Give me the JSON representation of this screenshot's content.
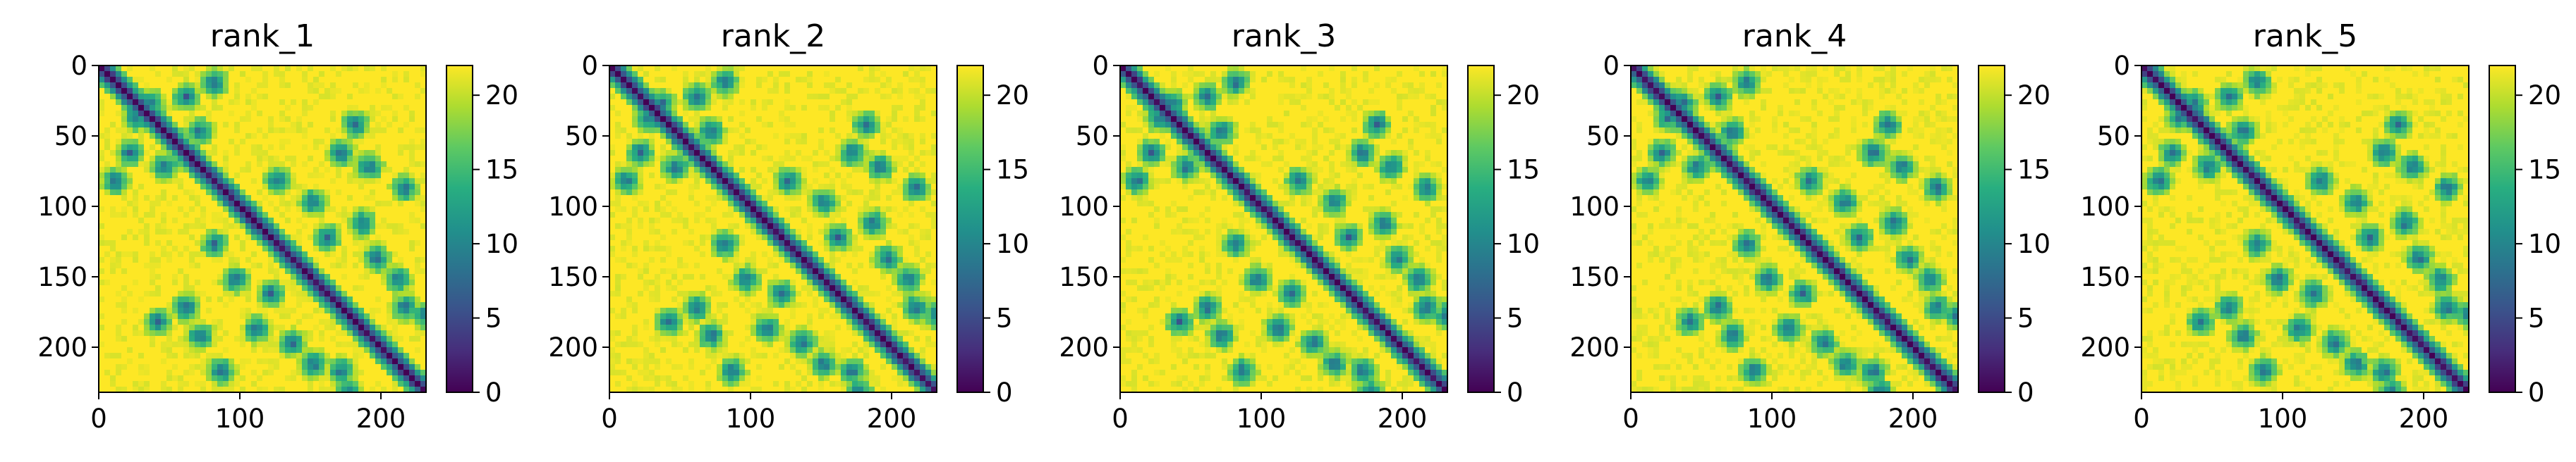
{
  "chart_data": [
    {
      "type": "heatmap",
      "title": "rank_1",
      "xticks": [
        0,
        100,
        200
      ],
      "yticks": [
        0,
        50,
        100,
        150,
        200
      ],
      "x_range": [
        0,
        232
      ],
      "y_range": [
        0,
        232
      ],
      "colorbar": {
        "min": 0,
        "max": 22,
        "ticks": [
          0,
          5,
          10,
          15,
          20
        ],
        "colormap": "viridis"
      },
      "grid": false
    },
    {
      "type": "heatmap",
      "title": "rank_2",
      "xticks": [
        0,
        100,
        200
      ],
      "yticks": [
        0,
        50,
        100,
        150,
        200
      ],
      "x_range": [
        0,
        232
      ],
      "y_range": [
        0,
        232
      ],
      "colorbar": {
        "min": 0,
        "max": 22,
        "ticks": [
          0,
          5,
          10,
          15,
          20
        ],
        "colormap": "viridis"
      },
      "grid": false
    },
    {
      "type": "heatmap",
      "title": "rank_3",
      "xticks": [
        0,
        100,
        200
      ],
      "yticks": [
        0,
        50,
        100,
        150,
        200
      ],
      "x_range": [
        0,
        232
      ],
      "y_range": [
        0,
        232
      ],
      "colorbar": {
        "min": 0,
        "max": 22,
        "ticks": [
          0,
          5,
          10,
          15,
          20
        ],
        "colormap": "viridis"
      },
      "grid": false
    },
    {
      "type": "heatmap",
      "title": "rank_4",
      "xticks": [
        0,
        100,
        200
      ],
      "yticks": [
        0,
        50,
        100,
        150,
        200
      ],
      "x_range": [
        0,
        232
      ],
      "y_range": [
        0,
        232
      ],
      "colorbar": {
        "min": 0,
        "max": 22,
        "ticks": [
          0,
          5,
          10,
          15,
          20
        ],
        "colormap": "viridis"
      },
      "grid": false
    },
    {
      "type": "heatmap",
      "title": "rank_5",
      "xticks": [
        0,
        100,
        200
      ],
      "yticks": [
        0,
        50,
        100,
        150,
        200
      ],
      "x_range": [
        0,
        232
      ],
      "y_range": [
        0,
        232
      ],
      "colorbar": {
        "min": 0,
        "max": 22,
        "ticks": [
          0,
          5,
          10,
          15,
          20
        ],
        "colormap": "viridis"
      },
      "grid": false
    }
  ],
  "colors": {
    "viridis_stops": [
      "#440154",
      "#472d7b",
      "#3b528b",
      "#2c728e",
      "#21918c",
      "#28ae80",
      "#5ec962",
      "#addc30",
      "#fde725"
    ],
    "axis": "#000000",
    "background": "#ffffff"
  }
}
